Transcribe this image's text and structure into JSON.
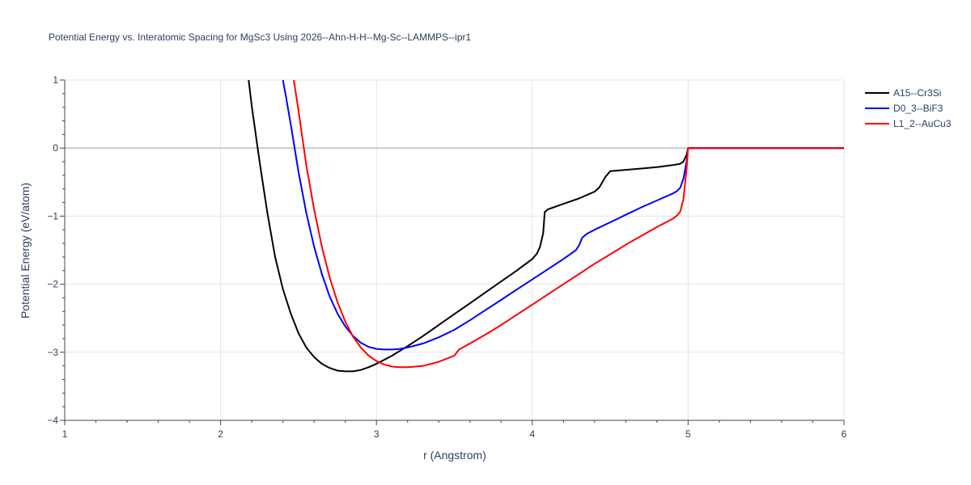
{
  "chart_data": {
    "type": "line",
    "title": "Potential Energy vs. Interatomic Spacing for MgSc3 Using 2026--Ahn-H-H--Mg-Sc--LAMMPS--ipr1",
    "xlabel": "r (Angstrom)",
    "ylabel": "Potential Energy (eV/atom)",
    "xlim": [
      1,
      6
    ],
    "ylim": [
      -4,
      1
    ],
    "xticks": [
      1,
      2,
      3,
      4,
      5,
      6
    ],
    "yticks": [
      1,
      0,
      -1,
      -2,
      -3,
      -4
    ],
    "ytick_labels": [
      "1",
      "0",
      "−1",
      "−2",
      "−3",
      "−4"
    ],
    "grid": true,
    "legend_position": "top-right",
    "series": [
      {
        "name": "A15--Cr3Si",
        "color": "#000000",
        "x": [
          2.18,
          2.2,
          2.25,
          2.3,
          2.35,
          2.4,
          2.45,
          2.5,
          2.55,
          2.6,
          2.65,
          2.7,
          2.75,
          2.8,
          2.85,
          2.9,
          2.95,
          3.0,
          3.05,
          3.1,
          3.2,
          3.3,
          3.4,
          3.5,
          3.6,
          3.7,
          3.8,
          3.9,
          4.0,
          4.03,
          4.05,
          4.07,
          4.08,
          4.1,
          4.2,
          4.3,
          4.4,
          4.43,
          4.45,
          4.47,
          4.5,
          4.6,
          4.7,
          4.8,
          4.9,
          4.95,
          4.97,
          4.99,
          5.0,
          5.2,
          5.4,
          5.6,
          5.8,
          6.0
        ],
        "y": [
          1.0,
          0.62,
          -0.2,
          -0.95,
          -1.6,
          -2.07,
          -2.43,
          -2.72,
          -2.93,
          -3.07,
          -3.17,
          -3.23,
          -3.27,
          -3.28,
          -3.28,
          -3.26,
          -3.22,
          -3.17,
          -3.11,
          -3.05,
          -2.91,
          -2.76,
          -2.6,
          -2.44,
          -2.28,
          -2.12,
          -1.96,
          -1.8,
          -1.63,
          -1.55,
          -1.45,
          -1.25,
          -0.94,
          -0.9,
          -0.82,
          -0.74,
          -0.64,
          -0.58,
          -0.5,
          -0.42,
          -0.34,
          -0.32,
          -0.3,
          -0.28,
          -0.25,
          -0.23,
          -0.2,
          -0.1,
          0.0,
          0.0,
          0.0,
          0.0,
          0.0,
          0.0
        ]
      },
      {
        "name": "D0_3--BiF3",
        "color": "#0000ff",
        "x": [
          2.4,
          2.42,
          2.45,
          2.5,
          2.55,
          2.6,
          2.65,
          2.7,
          2.75,
          2.8,
          2.85,
          2.9,
          2.95,
          3.0,
          3.05,
          3.1,
          3.15,
          3.2,
          3.3,
          3.4,
          3.5,
          3.6,
          3.7,
          3.8,
          3.9,
          4.0,
          4.1,
          4.2,
          4.28,
          4.3,
          4.32,
          4.35,
          4.4,
          4.5,
          4.6,
          4.7,
          4.8,
          4.9,
          4.93,
          4.95,
          4.97,
          4.99,
          5.0,
          5.2,
          5.4,
          5.6,
          5.8,
          6.0
        ],
        "y": [
          1.0,
          0.75,
          0.35,
          -0.35,
          -0.95,
          -1.45,
          -1.85,
          -2.18,
          -2.43,
          -2.62,
          -2.76,
          -2.86,
          -2.92,
          -2.95,
          -2.96,
          -2.96,
          -2.95,
          -2.93,
          -2.87,
          -2.78,
          -2.67,
          -2.53,
          -2.38,
          -2.23,
          -2.08,
          -1.93,
          -1.78,
          -1.63,
          -1.5,
          -1.43,
          -1.32,
          -1.26,
          -1.2,
          -1.09,
          -0.98,
          -0.87,
          -0.77,
          -0.67,
          -0.63,
          -0.58,
          -0.45,
          -0.2,
          0.0,
          0.0,
          0.0,
          0.0,
          0.0,
          0.0
        ]
      },
      {
        "name": "L1_2--AuCu3",
        "color": "#ff0000",
        "x": [
          2.47,
          2.5,
          2.55,
          2.6,
          2.65,
          2.7,
          2.75,
          2.8,
          2.85,
          2.9,
          2.95,
          3.0,
          3.05,
          3.1,
          3.15,
          3.2,
          3.25,
          3.3,
          3.4,
          3.5,
          3.53,
          3.6,
          3.7,
          3.8,
          3.9,
          4.0,
          4.1,
          4.2,
          4.3,
          4.4,
          4.5,
          4.6,
          4.7,
          4.8,
          4.9,
          4.93,
          4.95,
          4.97,
          4.99,
          5.0,
          5.2,
          5.4,
          5.6,
          5.8,
          6.0
        ],
        "y": [
          1.0,
          0.55,
          -0.25,
          -0.9,
          -1.45,
          -1.9,
          -2.26,
          -2.55,
          -2.77,
          -2.93,
          -3.05,
          -3.13,
          -3.18,
          -3.21,
          -3.22,
          -3.22,
          -3.21,
          -3.2,
          -3.14,
          -3.05,
          -2.96,
          -2.87,
          -2.74,
          -2.6,
          -2.45,
          -2.3,
          -2.15,
          -2.0,
          -1.85,
          -1.7,
          -1.56,
          -1.42,
          -1.29,
          -1.16,
          -1.04,
          -0.99,
          -0.93,
          -0.75,
          -0.3,
          0.0,
          0.0,
          0.0,
          0.0,
          0.0,
          0.0
        ]
      }
    ]
  }
}
